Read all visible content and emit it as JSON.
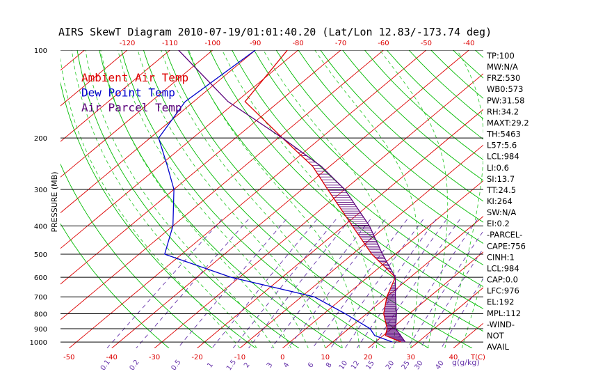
{
  "chart_data": {
    "type": "line",
    "title": "AIRS SkewT Diagram 2010-07-19/01:01:40.20 (Lat/Lon 12.83/-173.74 deg)",
    "ylabel": "PRESSURE (MB)",
    "xlabel": "T(C)",
    "mixing_ratio_label": "g(g/kg)",
    "pressure_levels": [
      100,
      200,
      300,
      400,
      500,
      600,
      700,
      800,
      900,
      1000
    ],
    "top_temperature_ticks": [
      -120,
      -110,
      -100,
      -90,
      -80,
      -70,
      -60,
      -50,
      -40
    ],
    "bottom_temperature_ticks": [
      -50,
      -40,
      -30,
      -20,
      -10,
      0,
      10,
      20,
      30,
      40
    ],
    "mixing_ratio_ticks": [
      "0.1",
      "0.2",
      "0.5",
      "1",
      "1.5",
      "2",
      "3",
      "4",
      "6",
      "8",
      "10",
      "12",
      "15",
      "20",
      "25",
      "30",
      "40"
    ],
    "xlim": [
      -52,
      47
    ],
    "ylim": [
      1050,
      100
    ],
    "series": [
      {
        "name": "Ambient Air Temp",
        "color": "#dd0000",
        "points": [
          [
            100,
            -82.5
          ],
          [
            150,
            -78
          ],
          [
            200,
            -59
          ],
          [
            250,
            -44
          ],
          [
            300,
            -34
          ],
          [
            400,
            -18
          ],
          [
            500,
            -5.5
          ],
          [
            600,
            6.5
          ],
          [
            700,
            10
          ],
          [
            800,
            14
          ],
          [
            900,
            19
          ],
          [
            950,
            20.5
          ],
          [
            1000,
            26
          ]
        ]
      },
      {
        "name": "Dew Point Temp",
        "color": "#0000cc",
        "points": [
          [
            100,
            -90
          ],
          [
            150,
            -92
          ],
          [
            200,
            -88
          ],
          [
            250,
            -78
          ],
          [
            300,
            -70
          ],
          [
            400,
            -60
          ],
          [
            500,
            -54
          ],
          [
            600,
            -32
          ],
          [
            700,
            -7
          ],
          [
            800,
            5
          ],
          [
            900,
            15
          ],
          [
            950,
            18
          ],
          [
            1000,
            24
          ]
        ]
      },
      {
        "name": "Air Parcel Temp",
        "color": "#5a007a",
        "points": [
          [
            100,
            -108
          ],
          [
            150,
            -82
          ],
          [
            200,
            -59
          ],
          [
            250,
            -42
          ],
          [
            300,
            -30
          ],
          [
            400,
            -14
          ],
          [
            500,
            -3
          ],
          [
            600,
            6.5
          ],
          [
            700,
            12
          ],
          [
            800,
            17
          ],
          [
            900,
            21
          ],
          [
            1000,
            27
          ]
        ]
      }
    ],
    "stats": [
      "TP:100",
      "MW:N/A",
      "FRZ:530",
      "WB0:573",
      "PW:31.58",
      "RH:34.2",
      "MAXT:29.2",
      "TH:5463",
      "L57:5.6",
      "LCL:984",
      "LI:0.6",
      "SI:13.7",
      "TT:24.5",
      "KI:264",
      "SW:N/A",
      "EI:0.2",
      "-PARCEL-",
      "CAPE:756",
      "CINH:1",
      "LCL:984",
      "CAP:0.0",
      "LFC:976",
      "EL:192",
      "MPL:112",
      "-WIND-",
      "NOT",
      "AVAIL"
    ],
    "colors": {
      "isotherm": "#dd0000",
      "dry_adiabat": "#00bb00",
      "moist_adiabat": "#33cc33",
      "mixing_ratio": "#6633aa",
      "isobar": "#000000"
    }
  }
}
